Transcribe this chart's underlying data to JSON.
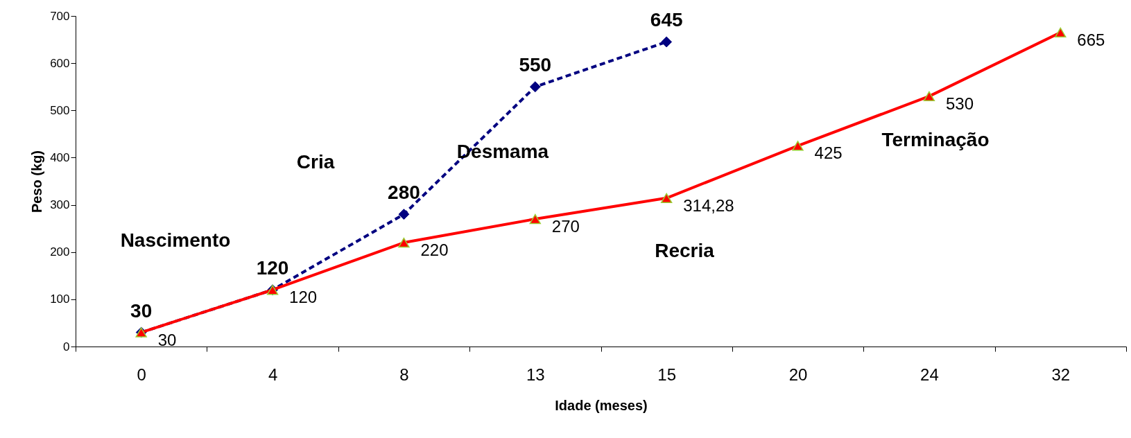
{
  "chart_data": {
    "type": "line",
    "xlabel": "Idade (meses)",
    "ylabel": "Peso (kg)",
    "categories": [
      "0",
      "4",
      "8",
      "13",
      "15",
      "20",
      "24",
      "32"
    ],
    "ylim": [
      0,
      700
    ],
    "yticks": [
      0,
      100,
      200,
      300,
      400,
      500,
      600,
      700
    ],
    "grid": false,
    "series": [
      {
        "color": "#000080",
        "marker": "diamond",
        "line_style": "dashed",
        "values": [
          30,
          120,
          280,
          550,
          645,
          null,
          null,
          null
        ],
        "value_labels": [
          "30",
          "120",
          "280",
          "550",
          "645",
          null,
          null,
          null
        ]
      },
      {
        "color": "#ff0000",
        "marker": "triangle",
        "line_style": "solid",
        "values": [
          30,
          120,
          220,
          270,
          314.28,
          425,
          530,
          665
        ],
        "value_labels": [
          "30",
          "120",
          "220",
          "270",
          "314,28",
          "425",
          "530",
          "665"
        ]
      }
    ],
    "annotations": [
      "Nascimento",
      "Cria",
      "Desmama",
      "Recria",
      "Terminação"
    ]
  }
}
